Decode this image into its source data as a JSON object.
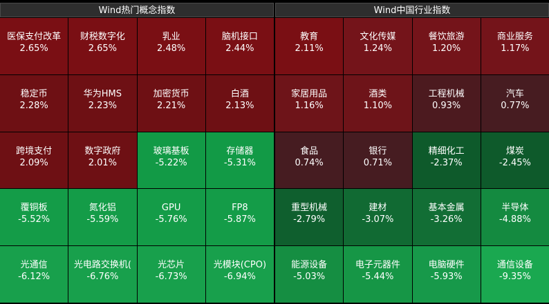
{
  "left_panel": {
    "title": "Wind热门概念指数",
    "tiles": [
      {
        "name": "医保支付改革",
        "pct": "2.65%",
        "color": "#7a0f14"
      },
      {
        "name": "财税数字化",
        "pct": "2.65%",
        "color": "#7a0f14"
      },
      {
        "name": "乳业",
        "pct": "2.48%",
        "color": "#7a0f14"
      },
      {
        "name": "脑机接口",
        "pct": "2.44%",
        "color": "#7a0f14"
      },
      {
        "name": "稳定币",
        "pct": "2.28%",
        "color": "#6e1014"
      },
      {
        "name": "华为HMS",
        "pct": "2.23%",
        "color": "#6e1014"
      },
      {
        "name": "加密货币",
        "pct": "2.21%",
        "color": "#6e1014"
      },
      {
        "name": "白酒",
        "pct": "2.13%",
        "color": "#6e1014"
      },
      {
        "name": "跨境支付",
        "pct": "2.09%",
        "color": "#6e1014"
      },
      {
        "name": "数字政府",
        "pct": "2.01%",
        "color": "#6e1014"
      },
      {
        "name": "玻璃基板",
        "pct": "-5.22%",
        "color": "#129a46"
      },
      {
        "name": "存储器",
        "pct": "-5.31%",
        "color": "#129a46"
      },
      {
        "name": "覆铜板",
        "pct": "-5.52%",
        "color": "#149c48"
      },
      {
        "name": "氮化铝",
        "pct": "-5.59%",
        "color": "#149c48"
      },
      {
        "name": "GPU",
        "pct": "-5.76%",
        "color": "#149c48"
      },
      {
        "name": "FP8",
        "pct": "-5.87%",
        "color": "#149c48"
      },
      {
        "name": "光通信",
        "pct": "-6.12%",
        "color": "#18a04c"
      },
      {
        "name": "光电路交换机(",
        "pct": "-6.76%",
        "color": "#18a04c"
      },
      {
        "name": "光芯片",
        "pct": "-6.73%",
        "color": "#18a04c"
      },
      {
        "name": "光模块(CPO)",
        "pct": "-6.94%",
        "color": "#18a04c"
      }
    ]
  },
  "right_panel": {
    "title": "Wind中国行业指数",
    "tiles": [
      {
        "name": "教育",
        "pct": "2.11%",
        "color": "#7a0f14"
      },
      {
        "name": "文化传媒",
        "pct": "1.24%",
        "color": "#74141a"
      },
      {
        "name": "餐饮旅游",
        "pct": "1.20%",
        "color": "#74141a"
      },
      {
        "name": "商业服务",
        "pct": "1.17%",
        "color": "#74141a"
      },
      {
        "name": "家居用品",
        "pct": "1.16%",
        "color": "#6e1419"
      },
      {
        "name": "酒类",
        "pct": "1.10%",
        "color": "#6e1419"
      },
      {
        "name": "工程机械",
        "pct": "0.93%",
        "color": "#4c1a1f"
      },
      {
        "name": "汽车",
        "pct": "0.77%",
        "color": "#471c21"
      },
      {
        "name": "食品",
        "pct": "0.74%",
        "color": "#461c21"
      },
      {
        "name": "银行",
        "pct": "0.71%",
        "color": "#461c21"
      },
      {
        "name": "精细化工",
        "pct": "-2.37%",
        "color": "#0e5a2b"
      },
      {
        "name": "煤炭",
        "pct": "-2.45%",
        "color": "#0e5a2b"
      },
      {
        "name": "重型机械",
        "pct": "-2.79%",
        "color": "#0f5f2e"
      },
      {
        "name": "建材",
        "pct": "-3.07%",
        "color": "#116a33"
      },
      {
        "name": "基本金属",
        "pct": "-3.26%",
        "color": "#126e35"
      },
      {
        "name": "半导体",
        "pct": "-4.88%",
        "color": "#148a40"
      },
      {
        "name": "能源设备",
        "pct": "-5.03%",
        "color": "#158e42"
      },
      {
        "name": "电子元器件",
        "pct": "-5.44%",
        "color": "#169646"
      },
      {
        "name": "电脑硬件",
        "pct": "-5.93%",
        "color": "#17994a"
      },
      {
        "name": "通信设备",
        "pct": "-9.35%",
        "color": "#1aa850"
      }
    ]
  }
}
